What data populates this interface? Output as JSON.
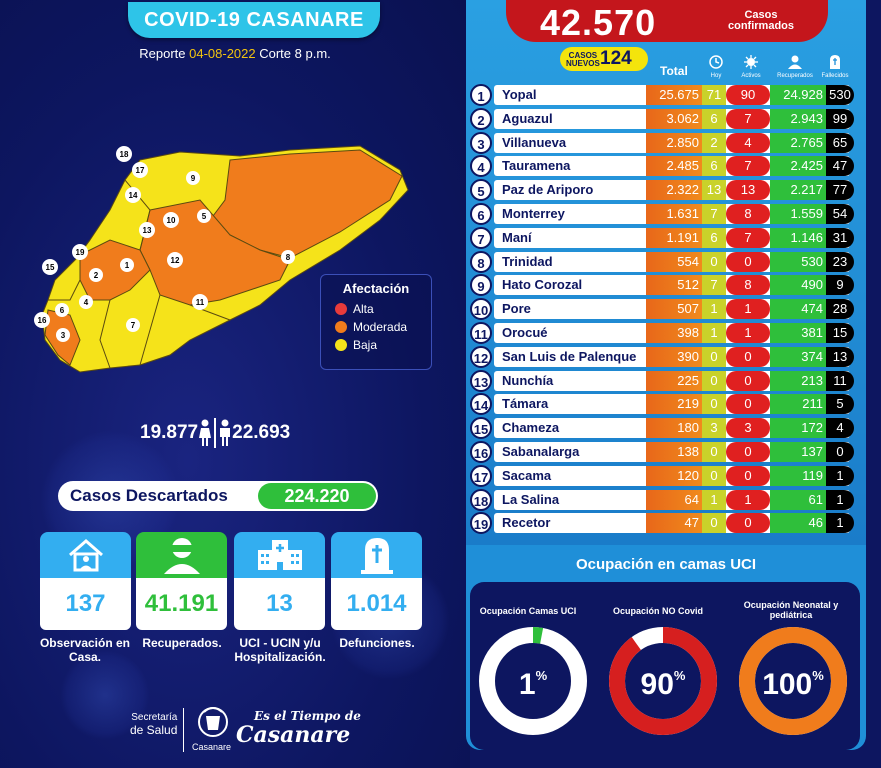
{
  "header": {
    "title": "COVID-19 CASANARE",
    "report_prefix": "Reporte",
    "report_date": "04-08-2022",
    "report_suffix": "Corte 8 p.m."
  },
  "map": {
    "legend_title": "Afectación",
    "legend": [
      {
        "label": "Alta",
        "color": "#e83b3b"
      },
      {
        "label": "Moderada",
        "color": "#f07c1c"
      },
      {
        "label": "Baja",
        "color": "#f5e31a"
      }
    ],
    "region_numbers": [
      "1",
      "2",
      "3",
      "4",
      "5",
      "6",
      "7",
      "8",
      "9",
      "10",
      "11",
      "12",
      "13",
      "14",
      "15",
      "16",
      "17",
      "18",
      "19"
    ]
  },
  "gender": {
    "female": "19.877",
    "male": "22.693"
  },
  "descartados": {
    "label": "Casos  Descartados",
    "value": "224.220"
  },
  "cards": [
    {
      "value": "137",
      "caption": "Observación en Casa.",
      "icon": "house-icon",
      "color": "#33aef0"
    },
    {
      "value": "41.191",
      "caption": "Recuperados.",
      "icon": "recovered-person-icon",
      "color": "#2fbf3b"
    },
    {
      "value": "13",
      "caption": "UCI - UCIN y/u Hospitalización.",
      "icon": "hospital-icon",
      "color": "#33aef0"
    },
    {
      "value": "1.014",
      "caption": "Defunciones.",
      "icon": "tombstone-icon",
      "color": "#33aef0"
    }
  ],
  "footer": {
    "secretaria": "Secretaría",
    "de_salud": "de Salud",
    "casanare_small": "Casanare",
    "slogan_top": "Es el Tiempo de",
    "slogan_big": "Casanare"
  },
  "totals": {
    "confirmed": "42.570",
    "confirmed_label_1": "Casos",
    "confirmed_label_2": "confirmados",
    "new_label_1": "CASOS",
    "new_label_2": "NUEVOS",
    "new_value": "124"
  },
  "table_headers": {
    "total": "Total",
    "hoy": "Hoy",
    "activos": "Activos",
    "recuperados": "Recuperados",
    "fallecidos": "Fallecidos"
  },
  "rows": [
    {
      "n": "1",
      "name": "Yopal",
      "total": "25.675",
      "hoy": "71",
      "activos": "90",
      "recup": "24.928",
      "fall": "530"
    },
    {
      "n": "2",
      "name": "Aguazul",
      "total": "3.062",
      "hoy": "6",
      "activos": "7",
      "recup": "2.943",
      "fall": "99"
    },
    {
      "n": "3",
      "name": "Villanueva",
      "total": "2.850",
      "hoy": "2",
      "activos": "4",
      "recup": "2.765",
      "fall": "65"
    },
    {
      "n": "4",
      "name": "Tauramena",
      "total": "2.485",
      "hoy": "6",
      "activos": "7",
      "recup": "2.425",
      "fall": "47"
    },
    {
      "n": "5",
      "name": "Paz de Ariporo",
      "total": "2.322",
      "hoy": "13",
      "activos": "13",
      "recup": "2.217",
      "fall": "77"
    },
    {
      "n": "6",
      "name": "Monterrey",
      "total": "1.631",
      "hoy": "7",
      "activos": "8",
      "recup": "1.559",
      "fall": "54"
    },
    {
      "n": "7",
      "name": "Maní",
      "total": "1.191",
      "hoy": "6",
      "activos": "7",
      "recup": "1.146",
      "fall": "31"
    },
    {
      "n": "8",
      "name": "Trinidad",
      "total": "554",
      "hoy": "0",
      "activos": "0",
      "recup": "530",
      "fall": "23"
    },
    {
      "n": "9",
      "name": "Hato Corozal",
      "total": "512",
      "hoy": "7",
      "activos": "8",
      "recup": "490",
      "fall": "9"
    },
    {
      "n": "10",
      "name": "Pore",
      "total": "507",
      "hoy": "1",
      "activos": "1",
      "recup": "474",
      "fall": "28"
    },
    {
      "n": "11",
      "name": "Orocué",
      "total": "398",
      "hoy": "1",
      "activos": "1",
      "recup": "381",
      "fall": "15"
    },
    {
      "n": "12",
      "name": "San Luis de Palenque",
      "total": "390",
      "hoy": "0",
      "activos": "0",
      "recup": "374",
      "fall": "13"
    },
    {
      "n": "13",
      "name": "Nunchía",
      "total": "225",
      "hoy": "0",
      "activos": "0",
      "recup": "213",
      "fall": "11"
    },
    {
      "n": "14",
      "name": "Támara",
      "total": "219",
      "hoy": "0",
      "activos": "0",
      "recup": "211",
      "fall": "5"
    },
    {
      "n": "15",
      "name": "Chameza",
      "total": "180",
      "hoy": "3",
      "activos": "3",
      "recup": "172",
      "fall": "4"
    },
    {
      "n": "16",
      "name": "Sabanalarga",
      "total": "138",
      "hoy": "0",
      "activos": "0",
      "recup": "137",
      "fall": "0"
    },
    {
      "n": "17",
      "name": "Sacama",
      "total": "120",
      "hoy": "0",
      "activos": "0",
      "recup": "119",
      "fall": "1"
    },
    {
      "n": "18",
      "name": "La Salina",
      "total": "64",
      "hoy": "1",
      "activos": "1",
      "recup": "61",
      "fall": "1"
    },
    {
      "n": "19",
      "name": "Recetor",
      "total": "47",
      "hoy": "0",
      "activos": "0",
      "recup": "46",
      "fall": "1"
    }
  ],
  "uci": {
    "title": "Ocupación en camas UCI",
    "gauges": [
      {
        "label": "Ocupación Camas UCI",
        "value": "1",
        "percent": 1,
        "ring": "#ffffff",
        "fill": "#2fbf3b"
      },
      {
        "label": "Ocupación NO Covid",
        "value": "90",
        "percent": 90,
        "ring": "#ffffff",
        "fill": "#d61f1f"
      },
      {
        "label": "Ocupación Neonatal y pediátrica",
        "value": "100",
        "percent": 100,
        "ring": "#ffffff",
        "fill": "#f07c1c"
      }
    ],
    "pct_symbol": "%"
  }
}
